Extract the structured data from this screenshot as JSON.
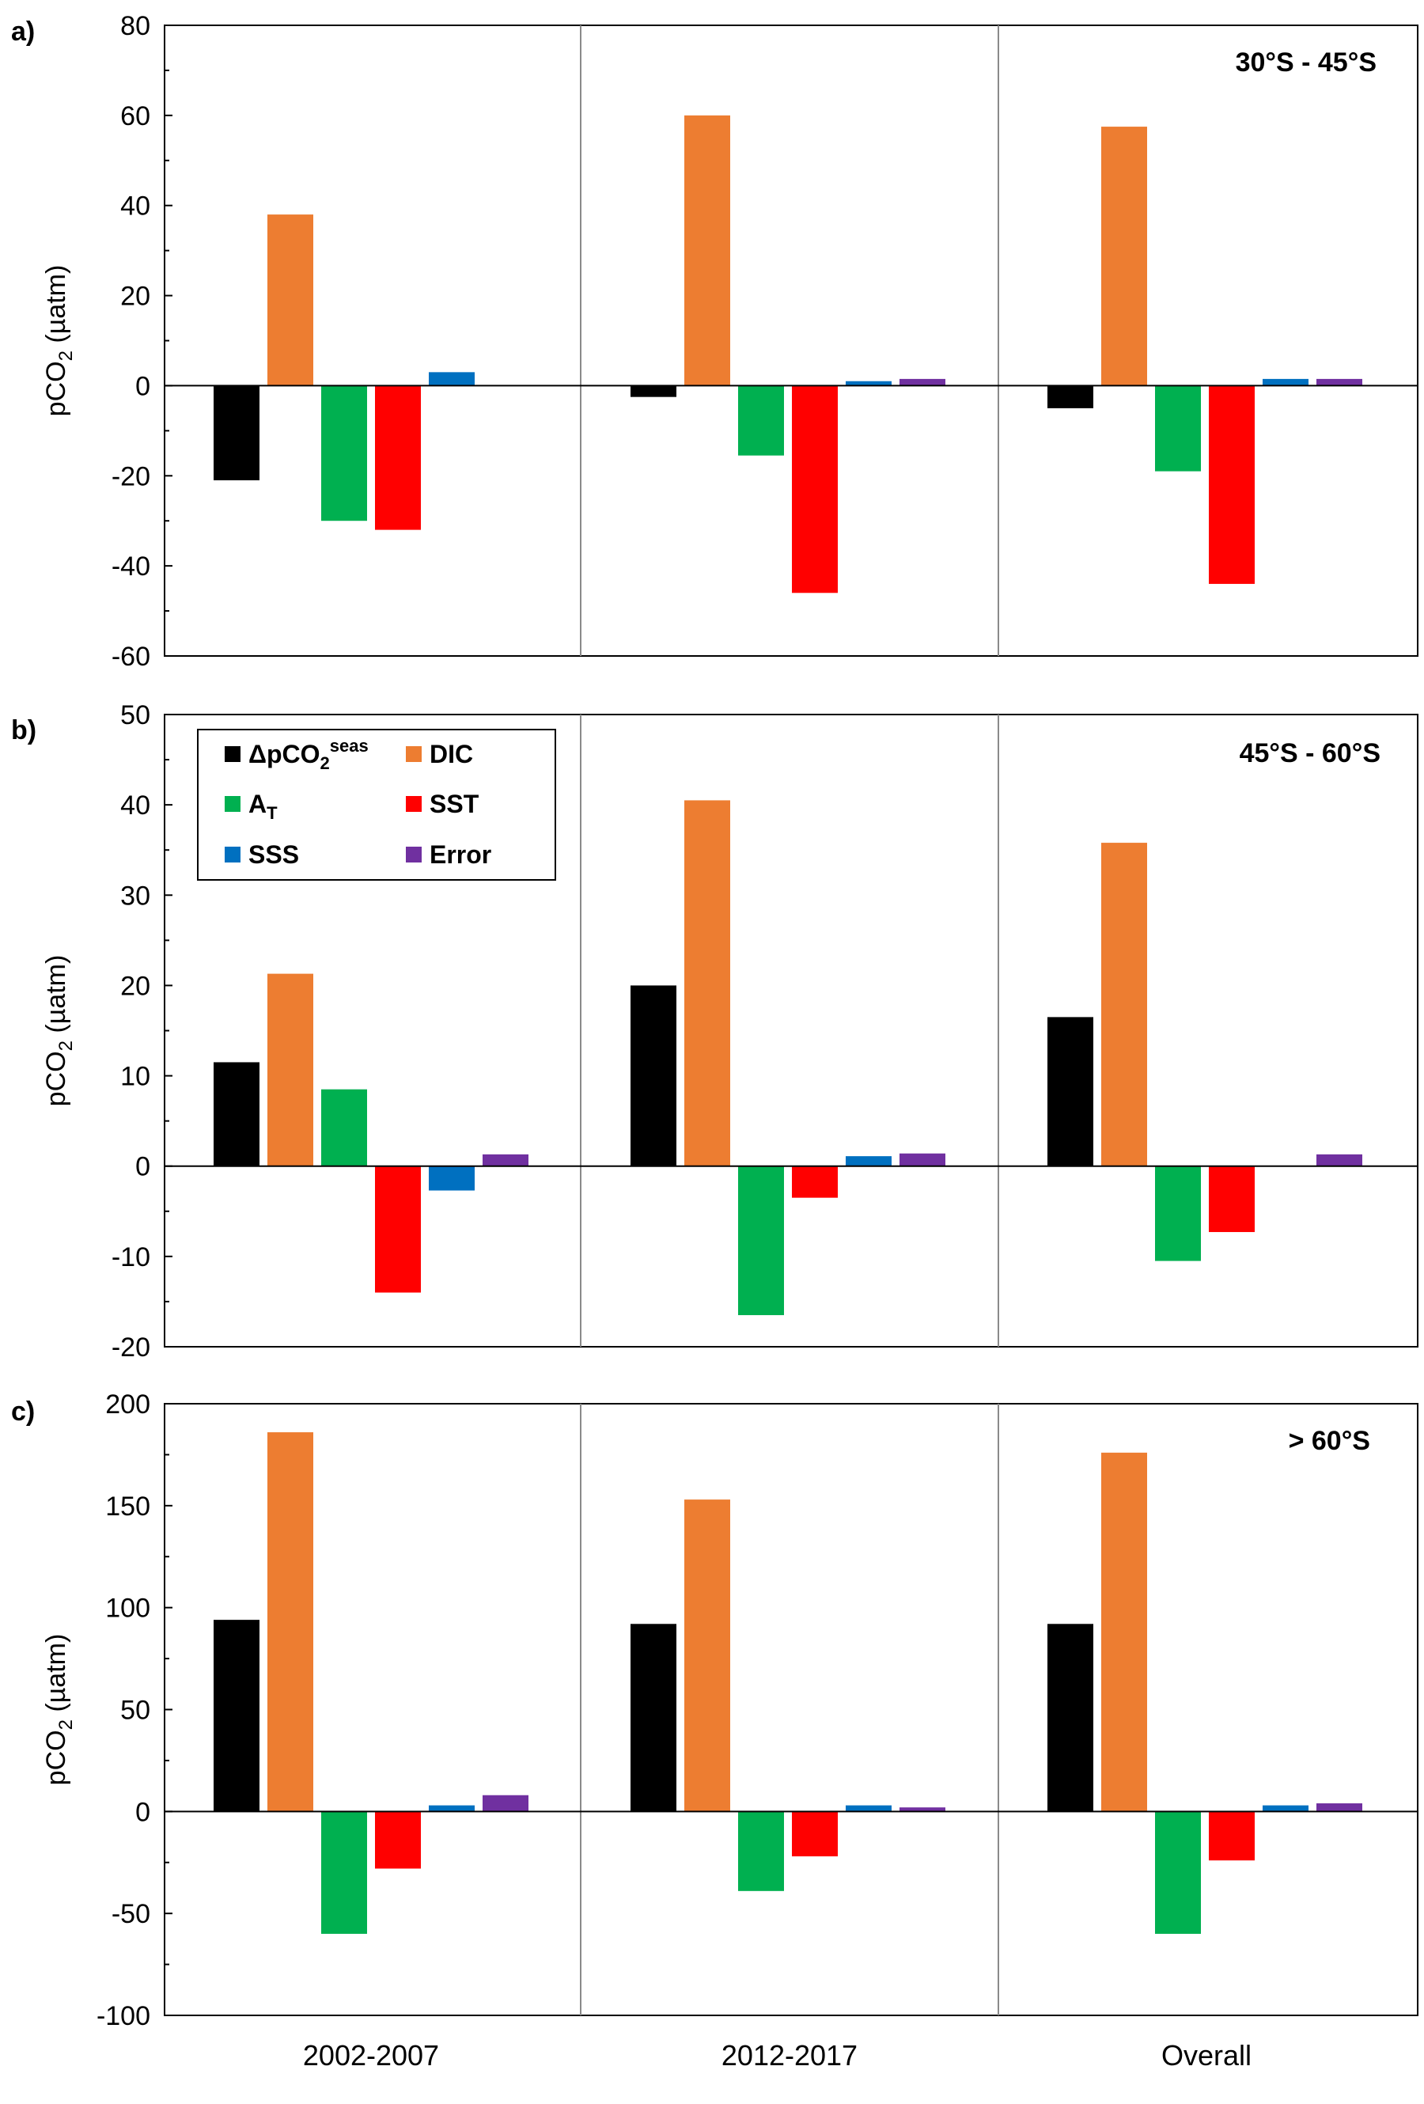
{
  "chart_data": [
    {
      "type": "bar",
      "panel_label": "a)",
      "region": "30°S - 45°S",
      "ylabel_main": "pCO",
      "ylabel_sub": "2",
      "ylabel_unit": " (µatm)",
      "ylim": [
        -60,
        80
      ],
      "yticks": [
        80,
        60,
        40,
        20,
        0,
        -20,
        -40,
        -60
      ],
      "categories": [
        "2002-2007",
        "2012-2017",
        "Overall"
      ],
      "series": [
        {
          "name": "ΔpCO2seas",
          "color": "#000000",
          "values": [
            -21,
            -2.5,
            -5
          ]
        },
        {
          "name": "DIC",
          "color": "#ED7D31",
          "values": [
            38,
            60,
            57.5
          ]
        },
        {
          "name": "AT",
          "color": "#00B050",
          "values": [
            -30,
            -15.5,
            -19
          ]
        },
        {
          "name": "SST",
          "color": "#FF0000",
          "values": [
            -32,
            -46,
            -44
          ]
        },
        {
          "name": "SSS",
          "color": "#0070C0",
          "values": [
            3,
            1,
            1.5
          ]
        },
        {
          "name": "Error",
          "color": "#7030A0",
          "values": [
            0,
            1.5,
            1.5
          ]
        }
      ]
    },
    {
      "type": "bar",
      "panel_label": "b)",
      "region": "45°S - 60°S",
      "ylabel_main": "pCO",
      "ylabel_sub": "2",
      "ylabel_unit": " (µatm)",
      "ylim": [
        -20,
        50
      ],
      "yticks": [
        50,
        40,
        30,
        20,
        10,
        0,
        -10,
        -20
      ],
      "categories": [
        "2002-2007",
        "2012-2017",
        "Overall"
      ],
      "series": [
        {
          "name": "ΔpCO2seas",
          "color": "#000000",
          "values": [
            11.5,
            20,
            16.5
          ]
        },
        {
          "name": "DIC",
          "color": "#ED7D31",
          "values": [
            21.3,
            40.5,
            35.8
          ]
        },
        {
          "name": "AT",
          "color": "#00B050",
          "values": [
            8.5,
            -16.5,
            -10.5
          ]
        },
        {
          "name": "SST",
          "color": "#FF0000",
          "values": [
            -14,
            -3.5,
            -7.3
          ]
        },
        {
          "name": "SSS",
          "color": "#0070C0",
          "values": [
            -2.7,
            1.1,
            0
          ]
        },
        {
          "name": "Error",
          "color": "#7030A0",
          "values": [
            1.3,
            1.4,
            1.3
          ]
        }
      ]
    },
    {
      "type": "bar",
      "panel_label": "c)",
      "region": "> 60°S",
      "ylabel_main": "pCO",
      "ylabel_sub": "2",
      "ylabel_unit": " (µatm)",
      "ylim": [
        -100,
        200
      ],
      "yticks": [
        200,
        150,
        100,
        50,
        0,
        -50,
        -100
      ],
      "categories": [
        "2002-2007",
        "2012-2017",
        "Overall"
      ],
      "series": [
        {
          "name": "ΔpCO2seas",
          "color": "#000000",
          "values": [
            94,
            92,
            92
          ]
        },
        {
          "name": "DIC",
          "color": "#ED7D31",
          "values": [
            186,
            153,
            176
          ]
        },
        {
          "name": "AT",
          "color": "#00B050",
          "values": [
            -60,
            -39,
            -60
          ]
        },
        {
          "name": "SST",
          "color": "#FF0000",
          "values": [
            -28,
            -22,
            -24
          ]
        },
        {
          "name": "SSS",
          "color": "#0070C0",
          "values": [
            3,
            3,
            3
          ]
        },
        {
          "name": "Error",
          "color": "#7030A0",
          "values": [
            8,
            2,
            4
          ]
        }
      ]
    }
  ],
  "legend": {
    "items": [
      {
        "label": "ΔpCO",
        "sub": "2",
        "sup": "seas",
        "color": "#000000"
      },
      {
        "label": "DIC",
        "sub": "",
        "sup": "",
        "color": "#ED7D31"
      },
      {
        "label": "A",
        "sub": "T",
        "sup": "",
        "color": "#00B050"
      },
      {
        "label": "SST",
        "sub": "",
        "sup": "",
        "color": "#FF0000"
      },
      {
        "label": "SSS",
        "sub": "",
        "sup": "",
        "color": "#0070C0"
      },
      {
        "label": "Error",
        "sub": "",
        "sup": "",
        "color": "#7030A0"
      }
    ]
  },
  "x_categories": [
    "2002-2007",
    "2012-2017",
    "Overall"
  ]
}
